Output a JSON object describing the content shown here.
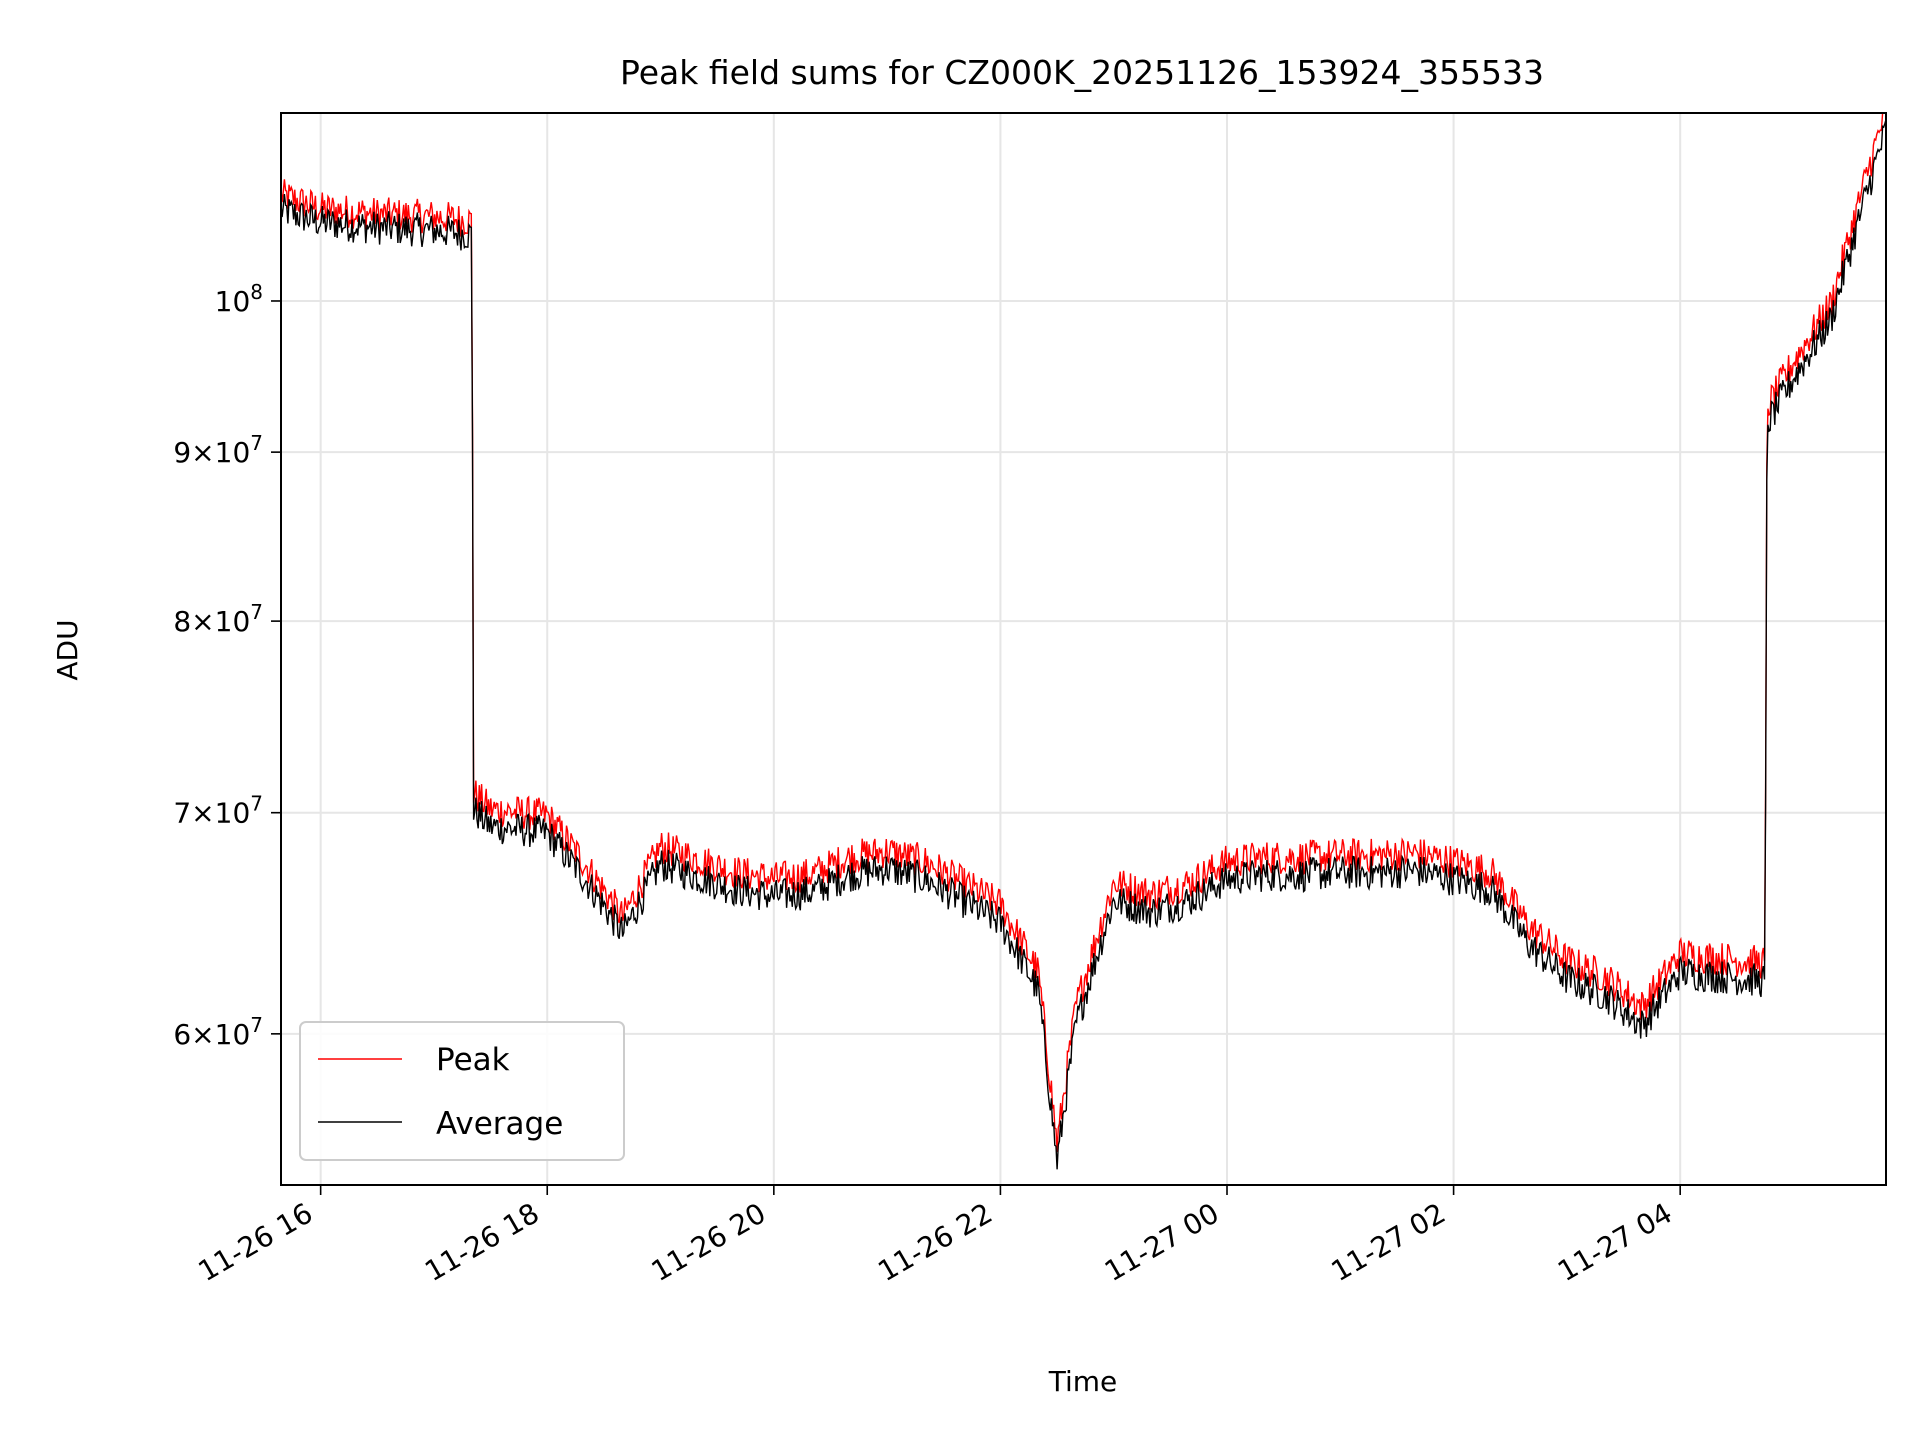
{
  "chart_data": {
    "type": "line",
    "title": "Peak field sums for CZ000K_20251126_153924_355533",
    "xlabel": "Time",
    "ylabel": "ADU",
    "yscale": "log",
    "ylim": [
      54000000,
      114000000
    ],
    "xlim": [
      "11-26 15:39",
      "11-27 05:49"
    ],
    "grid": true,
    "legend_position": "lower-left",
    "x_ticks": [
      {
        "t": "11-26 16:00",
        "label": "11-26 16"
      },
      {
        "t": "11-26 18:00",
        "label": "11-26 18"
      },
      {
        "t": "11-26 20:00",
        "label": "11-26 20"
      },
      {
        "t": "11-26 22:00",
        "label": "11-26 22"
      },
      {
        "t": "11-27 00:00",
        "label": "11-27 00"
      },
      {
        "t": "11-27 02:00",
        "label": "11-27 02"
      },
      {
        "t": "11-27 04:00",
        "label": "11-27 04"
      }
    ],
    "y_ticks": [
      {
        "value": 60000000,
        "mantissa": "6",
        "exp": "7"
      },
      {
        "value": 70000000,
        "mantissa": "7",
        "exp": "7"
      },
      {
        "value": 80000000,
        "mantissa": "8",
        "exp": "7"
      },
      {
        "value": 90000000,
        "mantissa": "9",
        "exp": "7"
      },
      {
        "value": 100000000,
        "mantissa": "",
        "exp": "8"
      }
    ],
    "series": [
      {
        "name": "Peak",
        "color": "#ff0000"
      },
      {
        "name": "Average",
        "color": "#000000"
      }
    ],
    "x": [
      "11-26 15:39",
      "11-26 16:00",
      "11-26 16:30",
      "11-26 17:00",
      "11-26 17:20",
      "11-26 17:21",
      "11-26 17:30",
      "11-26 18:00",
      "11-26 18:20",
      "11-26 18:40",
      "11-26 19:00",
      "11-26 19:20",
      "11-26 19:40",
      "11-26 20:00",
      "11-26 20:20",
      "11-26 20:40",
      "11-26 21:00",
      "11-26 21:20",
      "11-26 21:40",
      "11-26 22:00",
      "11-26 22:20",
      "11-26 22:30",
      "11-26 22:40",
      "11-26 23:00",
      "11-26 23:20",
      "11-26 23:40",
      "11-27 00:00",
      "11-27 00:20",
      "11-27 00:40",
      "11-27 01:00",
      "11-27 01:20",
      "11-27 01:40",
      "11-27 02:00",
      "11-27 02:20",
      "11-27 02:40",
      "11-27 03:00",
      "11-27 03:20",
      "11-27 03:40",
      "11-27 04:00",
      "11-27 04:20",
      "11-27 04:45",
      "11-27 04:46",
      "11-27 05:00",
      "11-27 05:20",
      "11-27 05:49"
    ],
    "average_values": [
      106800000,
      105900000,
      105500000,
      105300000,
      105000000,
      70300000,
      69500000,
      69200000,
      67000000,
      64500000,
      67700000,
      67100000,
      66500000,
      66200000,
      66400000,
      67200000,
      67500000,
      67000000,
      66000000,
      65000000,
      62000000,
      55000000,
      60500000,
      66000000,
      65500000,
      66000000,
      67000000,
      67200000,
      67200000,
      67300000,
      67300000,
      67400000,
      67000000,
      66500000,
      64000000,
      62500000,
      61800000,
      60500000,
      62800000,
      62600000,
      62400000,
      92000000,
      95000000,
      99000000,
      113000000
    ],
    "peak_values": [
      107400000,
      106400000,
      106000000,
      105800000,
      105500000,
      70800000,
      70000000,
      69700000,
      67400000,
      64900000,
      68200000,
      67600000,
      67000000,
      66700000,
      66900000,
      67700000,
      68000000,
      67500000,
      66500000,
      65500000,
      62500000,
      55400000,
      61000000,
      66500000,
      66000000,
      66500000,
      67500000,
      67700000,
      67700000,
      67800000,
      67800000,
      67900000,
      67500000,
      67000000,
      64500000,
      63000000,
      62300000,
      61000000,
      63300000,
      63100000,
      62900000,
      92600000,
      95600000,
      99600000,
      114000000
    ]
  }
}
